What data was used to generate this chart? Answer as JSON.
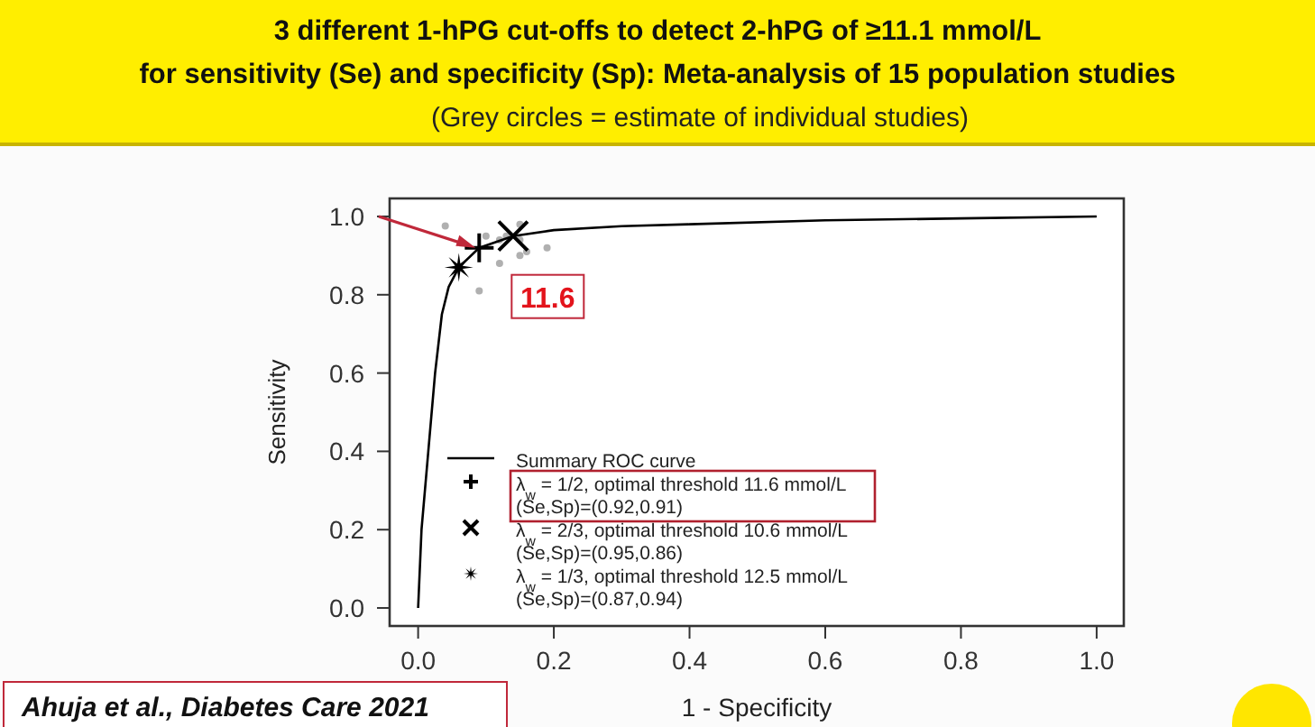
{
  "chart_data": {
    "type": "line",
    "title": "3 different 1-hPG cut-offs to detect 2-hPG of ≥11.1 mmol/L\nfor sensitivity (Se) and specificity (Sp): Meta-analysis of 15 population studies",
    "subtitle": "(Grey circles = estimate of individual studies)",
    "xlabel": "1 - Specificity",
    "ylabel": "Sensitivity",
    "xlim": [
      -0.042,
      1.04
    ],
    "ylim": [
      -0.046,
      1.046
    ],
    "xticks": [
      {
        "value": 0,
        "label": "0.0"
      },
      0.2,
      0.4,
      0.6,
      0.8,
      {
        "value": 1,
        "label": "1.0"
      }
    ],
    "yticks": [
      {
        "value": 0,
        "label": "0.0"
      },
      0.2,
      0.4,
      0.6,
      0.8,
      {
        "value": 1,
        "label": "1.0"
      }
    ],
    "legend": "bottom",
    "annotations": [
      {
        "text": "11.6",
        "x": 0.09,
        "y": 0.92
      },
      "Ahuja et al., Diabetes Care 2021"
    ],
    "series": [
      {
        "type": "scatter",
        "marker": "circle",
        "color": "#b0b0b0",
        "x": [
          0.04,
          0.15,
          0.12,
          0.15,
          0.15,
          0.16,
          0.19,
          0.12,
          0.09,
          0.1,
          0.13
        ],
        "values": [
          0.976,
          0.98,
          0.94,
          0.94,
          0.9,
          0.91,
          0.92,
          0.88,
          0.81,
          0.95,
          0.95
        ]
      },
      {
        "name": "Summary ROC curve",
        "color": "#000000",
        "line_style": "solid",
        "x": [
          0,
          0.005,
          0.015,
          0.025,
          0.035,
          0.045,
          0.06,
          0.09,
          0.14,
          0.2,
          0.3,
          0.4,
          0.6,
          0.8,
          1.0
        ],
        "values": [
          0,
          0.2,
          0.4,
          0.6,
          0.75,
          0.82,
          0.87,
          0.92,
          0.95,
          0.965,
          0.975,
          0.98,
          0.99,
          0.995,
          1.0
        ]
      },
      {
        "type": "scatter",
        "marker": "plus",
        "name": "λ$_{w}$ = 1/2, optimal threshold 11.6 mmol/L\n(Se,Sp)=(0.92,0.91)",
        "color": "#000000",
        "x": [
          0.09
        ],
        "values": [
          0.92
        ]
      },
      {
        "type": "scatter",
        "marker": "cross",
        "name": "λ$_{w}$ = 2/3, optimal threshold 10.6 mmol/L\n(Se,Sp)=(0.95,0.86)",
        "color": "#000000",
        "x": [
          0.14
        ],
        "values": [
          0.95
        ]
      },
      {
        "type": "scatter",
        "marker": "star",
        "name": "λ$_{w}$ = 1/3, optimal threshold 12.5 mmol/L\n(Se,Sp)=(0.87,0.94)",
        "color": "#000000",
        "x": [
          0.06
        ],
        "values": [
          0.87
        ]
      }
    ]
  }
}
